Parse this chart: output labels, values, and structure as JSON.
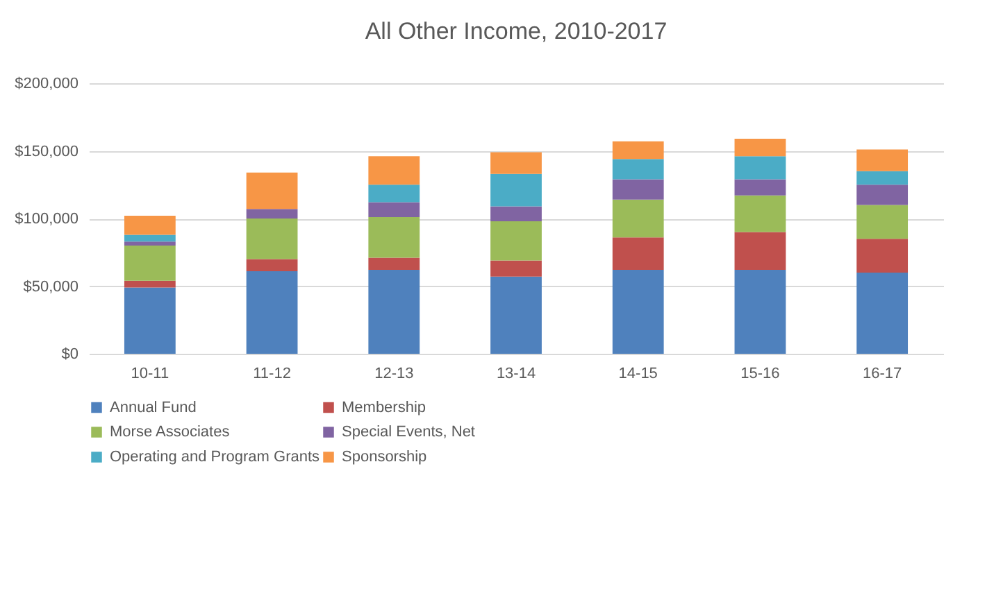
{
  "chart_data": {
    "type": "bar",
    "title": "All Other Income, 2010-2017",
    "stacked": true,
    "categories": [
      "10-11",
      "11-12",
      "12-13",
      "13-14",
      "14-15",
      "15-16",
      "16-17"
    ],
    "series": [
      {
        "name": "Annual Fund",
        "color": "#4f81bd",
        "values": [
          49000,
          61000,
          62000,
          57000,
          62000,
          62000,
          60000
        ]
      },
      {
        "name": "Membership",
        "color": "#c0504d",
        "values": [
          5000,
          9000,
          9000,
          12000,
          24000,
          28000,
          25000
        ]
      },
      {
        "name": "Morse Associates",
        "color": "#9bbb59",
        "values": [
          26000,
          30000,
          30000,
          29000,
          28000,
          27000,
          25000
        ]
      },
      {
        "name": "Special Events, Net",
        "color": "#8064a2",
        "values": [
          3000,
          7000,
          11000,
          11000,
          15000,
          12000,
          15000
        ]
      },
      {
        "name": "Operating and Program Grants",
        "color": "#4bacc6",
        "values": [
          5000,
          0,
          13000,
          24000,
          15000,
          17000,
          10000
        ]
      },
      {
        "name": "Sponsorship",
        "color": "#f79646",
        "values": [
          14000,
          27000,
          21000,
          16000,
          13000,
          13000,
          16000
        ]
      }
    ],
    "ylim": [
      0,
      200000
    ],
    "yticks": [
      {
        "value": 0,
        "label": "$0"
      },
      {
        "value": 50000,
        "label": "$50,000"
      },
      {
        "value": 100000,
        "label": "$100,000"
      },
      {
        "value": 150000,
        "label": "$150,000"
      },
      {
        "value": 200000,
        "label": "$200,000"
      }
    ],
    "grid": "y",
    "legend": "bottom"
  }
}
